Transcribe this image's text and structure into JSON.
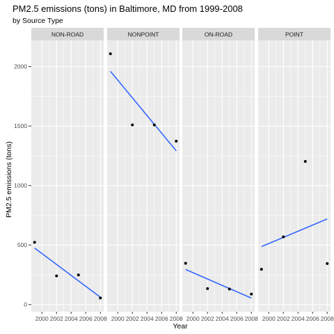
{
  "chart_data": {
    "type": "scatter",
    "title": "PM2.5 emissions (tons) in Baltimore, MD from 1999-2008",
    "subtitle": "by Source Type",
    "xlabel": "Year",
    "ylabel": "PM2.5 emissions (tons)",
    "xlim": [
      1998.55,
      2008.45
    ],
    "ylim": [
      -60,
      2220
    ],
    "x_ticks": [
      2000,
      2002,
      2004,
      2006,
      2008
    ],
    "y_ticks": [
      0,
      500,
      1000,
      1500,
      2000
    ],
    "grid": true,
    "colors": {
      "panel_bg": "#ebebeb",
      "grid": "#ffffff",
      "strip_bg": "#d9d9d9",
      "points": "#000000",
      "trend_line": "#3366ff"
    },
    "panels": [
      {
        "name": "NON-ROAD",
        "points": [
          {
            "x": 1999,
            "y": 522.9
          },
          {
            "x": 2002,
            "y": 240.8
          },
          {
            "x": 2005,
            "y": 248.9
          },
          {
            "x": 2008,
            "y": 55.8
          }
        ],
        "trend": [
          {
            "x": 1999,
            "y": 475
          },
          {
            "x": 2008,
            "y": 62
          }
        ]
      },
      {
        "name": "NONPOINT",
        "points": [
          {
            "x": 1999,
            "y": 2107.6
          },
          {
            "x": 2002,
            "y": 1509.5
          },
          {
            "x": 2005,
            "y": 1509.5
          },
          {
            "x": 2008,
            "y": 1373.2
          }
        ],
        "trend": [
          {
            "x": 1999,
            "y": 1960
          },
          {
            "x": 2008,
            "y": 1292
          }
        ]
      },
      {
        "name": "ON-ROAD",
        "points": [
          {
            "x": 1999,
            "y": 346.8
          },
          {
            "x": 2002,
            "y": 134.3
          },
          {
            "x": 2005,
            "y": 130.4
          },
          {
            "x": 2008,
            "y": 88.3
          }
        ],
        "trend": [
          {
            "x": 1999,
            "y": 295
          },
          {
            "x": 2008,
            "y": 55
          }
        ]
      },
      {
        "name": "POINT",
        "points": [
          {
            "x": 1999,
            "y": 296.8
          },
          {
            "x": 2002,
            "y": 569.3
          },
          {
            "x": 2005,
            "y": 1202.5
          },
          {
            "x": 2008,
            "y": 344.98
          }
        ],
        "trend": [
          {
            "x": 1999,
            "y": 487
          },
          {
            "x": 2008,
            "y": 720
          }
        ]
      }
    ]
  }
}
